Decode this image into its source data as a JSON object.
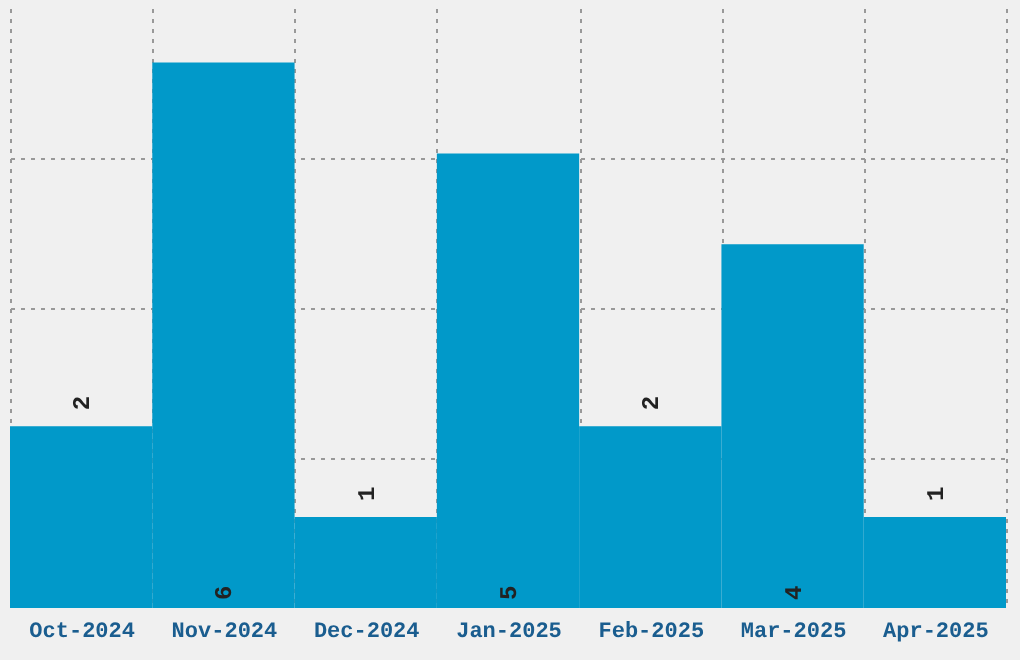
{
  "chart_data": {
    "type": "bar",
    "categories": [
      "Oct-2024",
      "Nov-2024",
      "Dec-2024",
      "Jan-2025",
      "Feb-2025",
      "Mar-2025",
      "Apr-2025"
    ],
    "values": [
      2,
      6,
      1,
      5,
      2,
      4,
      1
    ],
    "color": "#0199c9",
    "ylim": [
      0,
      6.6
    ],
    "yticks": [
      {
        "value": 1.65,
        "label": null
      },
      {
        "value": 3.3,
        "label": null
      },
      {
        "value": 4.95,
        "label": null
      }
    ],
    "tick_labels": "x",
    "grid": true,
    "data_labels": true
  }
}
